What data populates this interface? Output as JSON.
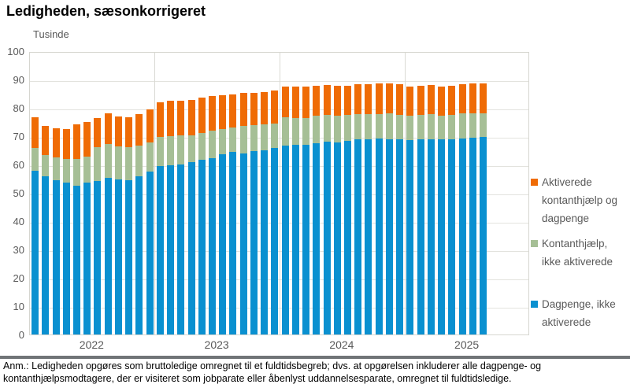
{
  "header": {
    "title": "Ledigheden, sæsonkorrigeret"
  },
  "chart": {
    "unit_label": "Tusinde"
  },
  "chart_data": {
    "type": "bar",
    "stacked": true,
    "title": "Ledigheden, sæsonkorrigeret",
    "ylabel": "Tusinde",
    "axis": {
      "ylim": [
        0,
        100
      ],
      "ytick_step": 10,
      "y_tick_labels": [
        "100",
        "90",
        "80",
        "70",
        "60",
        "50",
        "40",
        "30",
        "20",
        "10",
        "0"
      ],
      "x_year_labels": [
        "2022",
        "2023",
        "2024",
        "2025"
      ],
      "slots_per_year": 12,
      "total_slots": 48,
      "grid": true,
      "legend_position": "right"
    },
    "categories": [
      "2022-01",
      "2022-02",
      "2022-03",
      "2022-04",
      "2022-05",
      "2022-06",
      "2022-07",
      "2022-08",
      "2022-09",
      "2022-10",
      "2022-11",
      "2022-12",
      "2023-01",
      "2023-02",
      "2023-03",
      "2023-04",
      "2023-05",
      "2023-06",
      "2023-07",
      "2023-08",
      "2023-09",
      "2023-10",
      "2023-11",
      "2023-12",
      "2024-01",
      "2024-02",
      "2024-03",
      "2024-04",
      "2024-05",
      "2024-06",
      "2024-07",
      "2024-08",
      "2024-09",
      "2024-10",
      "2024-11",
      "2024-12",
      "2025-01",
      "2025-02",
      "2025-03",
      "2025-04",
      "2025-05",
      "2025-06",
      "2025-07",
      "2025-08"
    ],
    "series": [
      {
        "name": "Dagpenge, ikke aktiverede",
        "color": "#0a90d0",
        "values": [
          57.8,
          55.7,
          54.5,
          53.5,
          52.6,
          53.5,
          54.1,
          55.4,
          54.7,
          54.4,
          55.7,
          57.5,
          59.4,
          59.7,
          60.1,
          60.8,
          61.6,
          62.3,
          63.7,
          64.4,
          63.9,
          64.6,
          65.1,
          65.7,
          66.8,
          66.9,
          66.9,
          67.4,
          68.1,
          67.9,
          68.4,
          69.0,
          69.0,
          69.3,
          69.0,
          68.8,
          68.5,
          69.0,
          69.0,
          68.8,
          69.0,
          69.2,
          69.5,
          69.8
        ]
      },
      {
        "name": "Kontanthjælp, ikke aktiverede",
        "color": "#a6bf96",
        "values": [
          7.9,
          7.5,
          8.0,
          8.5,
          9.4,
          9.4,
          11.9,
          11.8,
          11.6,
          11.6,
          11.0,
          10.4,
          10.4,
          10.3,
          10.1,
          9.6,
          9.4,
          9.6,
          8.9,
          8.8,
          9.6,
          9.2,
          9.1,
          8.7,
          10.0,
          9.6,
          9.6,
          9.7,
          9.4,
          9.2,
          9.1,
          8.7,
          8.7,
          8.4,
          9.0,
          8.7,
          8.6,
          8.5,
          8.7,
          8.3,
          8.5,
          8.8,
          8.5,
          8.4
        ]
      },
      {
        "name": "Aktiverede kontanthjælp og dagpenge",
        "color": "#ef6b05",
        "values": [
          10.9,
          10.5,
          10.4,
          10.6,
          12.2,
          12.2,
          10.3,
          10.8,
          10.7,
          10.8,
          11.2,
          11.5,
          12.2,
          12.4,
          12.2,
          12.5,
          12.6,
          12.2,
          11.9,
          11.6,
          11.8,
          11.6,
          11.5,
          11.6,
          10.6,
          10.9,
          10.9,
          10.7,
          10.6,
          10.7,
          10.3,
          10.6,
          10.6,
          10.8,
          10.5,
          10.8,
          10.3,
          10.3,
          10.4,
          10.5,
          10.3,
          10.3,
          10.5,
          10.5
        ]
      }
    ]
  },
  "legend": {
    "items": [
      {
        "label": "Aktiverede kontanthjælp og dagpenge",
        "color": "#ef6b05"
      },
      {
        "label": "Kontanthjælp, ikke aktiverede",
        "color": "#a6bf96"
      },
      {
        "label": "Dagpenge, ikke aktiverede",
        "color": "#0a90d0"
      }
    ]
  },
  "footnote": {
    "line1": "Anm.: Ledigheden opgøres som bruttoledige omregnet til et fuldtidsbegreb; dvs. at opgørelsen inkluderer alle dagpenge- og",
    "line2": "kontanthjælpsmodtagere, der er visiteret som jobparate eller åbenlyst uddannelsesparate, omregnet til fuldtidsledige."
  },
  "colors": {
    "axis_text": "#595959",
    "gridline": "#e3e3de",
    "plot_border": "#d6d6d0",
    "footer_divider": "#707477",
    "background": "#ffffff"
  }
}
